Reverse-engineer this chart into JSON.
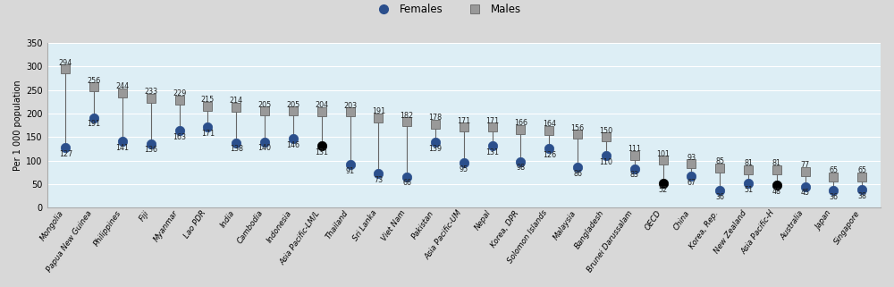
{
  "categories": [
    "Mongolia",
    "Papua New Guinea",
    "Philippines",
    "Fiji",
    "Myanmar",
    "Lao PDR",
    "India",
    "Cambodia",
    "Indonesia",
    "Asia Pacific-LM/L",
    "Thailand",
    "Sri Lanka",
    "Viet Nam",
    "Pakistan",
    "Asia Pacific-UM",
    "Nepal",
    "Korea, DPR",
    "Solomon Islands",
    "Malaysia",
    "Bangladesh",
    "Brunei Darussalam",
    "OECD",
    "China",
    "Korea, Rep.",
    "New Zealand",
    "Asia Pacific-H",
    "Australia",
    "Japan",
    "Singapore"
  ],
  "males": [
    294,
    256,
    244,
    233,
    229,
    215,
    214,
    205,
    205,
    204,
    203,
    191,
    182,
    178,
    171,
    171,
    166,
    164,
    156,
    150,
    111,
    101,
    93,
    85,
    81,
    81,
    77,
    65,
    65
  ],
  "females": [
    127,
    191,
    141,
    136,
    163,
    171,
    138,
    140,
    146,
    131,
    91,
    73,
    66,
    139,
    95,
    131,
    98,
    126,
    86,
    110,
    83,
    52,
    67,
    36,
    51,
    48,
    45,
    36,
    38
  ],
  "female_black": [
    false,
    false,
    false,
    false,
    false,
    false,
    false,
    false,
    false,
    true,
    false,
    false,
    false,
    false,
    false,
    false,
    false,
    false,
    false,
    false,
    false,
    true,
    false,
    false,
    false,
    true,
    false,
    false,
    false
  ],
  "plot_bg_color": "#ddeef5",
  "fig_bg_color": "#d8d8d8",
  "male_color": "#999999",
  "male_edge_color": "#666666",
  "female_color": "#2b4f8c",
  "female_black_color": "#000000",
  "line_color": "#666666",
  "ylabel": "Per 1 000 population",
  "ylim": [
    0,
    350
  ],
  "yticks": [
    0,
    50,
    100,
    150,
    200,
    250,
    300,
    350
  ],
  "label_fontsize": 5.8,
  "tick_fontsize": 7.0,
  "ylabel_fontsize": 7.0,
  "legend_fontsize": 8.5,
  "xtick_fontsize": 6.2
}
